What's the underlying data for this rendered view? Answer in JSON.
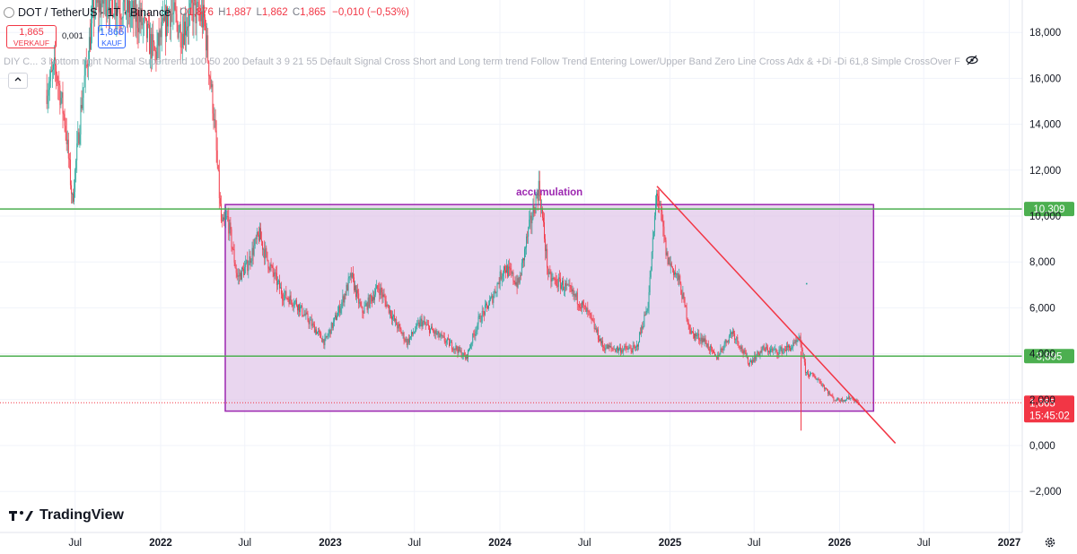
{
  "header": {
    "symbol": "DOT / TetherUS · 1T · Binance",
    "open_label": "O",
    "open": "1,876",
    "high_label": "H",
    "high": "1,887",
    "low_label": "L",
    "low": "1,862",
    "close_label": "C",
    "close": "1,865",
    "change": "−0,010 (−0,53%)"
  },
  "trade": {
    "sell_price": "1,865",
    "sell_label": "VERKAUF",
    "spread": "0,001",
    "buy_price": "1,866",
    "buy_label": "KAUF"
  },
  "indicators_text": "DIY C... 3 bottom right Normal Supertrend 100 50 200 Default 3 9 21 55 Default Signal Cross Short and Long term trend Follow Trend Entering Lower/Upper Band Zero Line Cross Adx & +Di -Di 61,8 Simple CrossOver F",
  "collapse_icon": "chevron-up-icon",
  "branding": "TradingView",
  "settings_icon": "gear-icon",
  "colors": {
    "up": "#26a69a",
    "down": "#f23645",
    "box_fill": "#e1c8e9",
    "box_stroke": "#9c27b0",
    "hline": "#4caf50",
    "trendline": "#f23645"
  },
  "chart_data": {
    "type": "candlestick",
    "y_ticks": [
      "18,000",
      "16,000",
      "14,000",
      "12,000",
      "10,000",
      "8,000",
      "6,000",
      "4,000",
      "2,000",
      "0,000",
      "−2,000"
    ],
    "y_tick_values": [
      18,
      16,
      14,
      12,
      10,
      8,
      6,
      4,
      2,
      0,
      -2
    ],
    "x_ticks": [
      "Jul",
      "2022",
      "Jul",
      "2023",
      "Jul",
      "2024",
      "Jul",
      "2025",
      "Jul",
      "2026",
      "Jul",
      "2027"
    ],
    "x_tick_dates": [
      "2021-07-01",
      "2022-01-01",
      "2022-07-01",
      "2023-01-01",
      "2023-07-01",
      "2024-01-01",
      "2024-07-01",
      "2025-01-01",
      "2025-07-01",
      "2026-01-01",
      "2026-07-01",
      "2027-01-01"
    ],
    "ylim": [
      -2.7,
      19.5
    ],
    "price_path": [
      [
        "2021-05-01",
        15.5
      ],
      [
        "2021-05-20",
        16.5
      ],
      [
        "2021-06-10",
        14.0
      ],
      [
        "2021-06-25",
        10.6
      ],
      [
        "2021-07-15",
        15.0
      ],
      [
        "2021-08-10",
        19.0
      ],
      [
        "2021-09-10",
        19.5
      ],
      [
        "2021-10-20",
        19.0
      ],
      [
        "2021-11-20",
        18.5
      ],
      [
        "2021-12-20",
        17.0
      ],
      [
        "2022-01-20",
        19.0
      ],
      [
        "2022-02-15",
        18.0
      ],
      [
        "2022-03-10",
        19.0
      ],
      [
        "2022-04-05",
        18.5
      ],
      [
        "2022-04-25",
        14.5
      ],
      [
        "2022-05-12",
        9.5
      ],
      [
        "2022-05-25",
        9.9
      ],
      [
        "2022-06-15",
        7.3
      ],
      [
        "2022-07-05",
        7.8
      ],
      [
        "2022-08-01",
        9.2
      ],
      [
        "2022-08-20",
        8.0
      ],
      [
        "2022-09-20",
        6.6
      ],
      [
        "2022-10-20",
        6.2
      ],
      [
        "2022-11-10",
        5.6
      ],
      [
        "2022-12-20",
        4.5
      ],
      [
        "2023-01-20",
        5.9
      ],
      [
        "2023-02-15",
        7.4
      ],
      [
        "2023-03-10",
        5.8
      ],
      [
        "2023-04-15",
        6.9
      ],
      [
        "2023-05-20",
        5.4
      ],
      [
        "2023-06-15",
        4.5
      ],
      [
        "2023-07-15",
        5.4
      ],
      [
        "2023-08-20",
        4.8
      ],
      [
        "2023-10-01",
        4.2
      ],
      [
        "2023-10-20",
        3.8
      ],
      [
        "2023-11-15",
        5.4
      ],
      [
        "2023-12-15",
        6.4
      ],
      [
        "2024-01-10",
        7.8
      ],
      [
        "2024-02-10",
        7.0
      ],
      [
        "2024-03-01",
        9.2
      ],
      [
        "2024-03-25",
        11.3
      ],
      [
        "2024-04-15",
        7.3
      ],
      [
        "2024-05-15",
        7.0
      ],
      [
        "2024-06-15",
        6.4
      ],
      [
        "2024-07-10",
        5.7
      ],
      [
        "2024-08-10",
        4.3
      ],
      [
        "2024-09-10",
        4.2
      ],
      [
        "2024-10-20",
        4.2
      ],
      [
        "2024-11-15",
        6.2
      ],
      [
        "2024-12-04",
        11.2
      ],
      [
        "2024-12-25",
        8.2
      ],
      [
        "2025-01-20",
        7.2
      ],
      [
        "2025-02-15",
        4.9
      ],
      [
        "2025-03-15",
        4.6
      ],
      [
        "2025-04-10",
        3.8
      ],
      [
        "2025-05-15",
        5.0
      ],
      [
        "2025-06-20",
        3.6
      ],
      [
        "2025-07-20",
        4.2
      ],
      [
        "2025-08-20",
        4.1
      ],
      [
        "2025-09-20",
        4.3
      ],
      [
        "2025-10-08",
        4.6
      ],
      [
        "2025-10-20",
        3.2
      ],
      [
        "2025-11-15",
        2.9
      ],
      [
        "2025-12-20",
        2.0
      ],
      [
        "2026-01-10",
        2.0
      ],
      [
        "2026-01-25",
        2.1
      ],
      [
        "2026-02-10",
        1.87
      ]
    ],
    "flash_crash": {
      "date": "2025-10-10",
      "low": 0.65
    },
    "box": {
      "label": "accumulation",
      "x_start": "2022-05-20",
      "x_end": "2026-03-15",
      "y_low": 1.5,
      "y_high": 10.5
    },
    "hlines": [
      {
        "value": 10.309,
        "label": "10,309"
      },
      {
        "value": 3.895,
        "label": "3,895"
      }
    ],
    "trendline": {
      "x1": "2024-12-04",
      "y1": 11.3,
      "x2": "2026-05-01",
      "y2": 0.1
    },
    "last_price": {
      "value": 1.865,
      "label": "1,865",
      "countdown": "15:45:02"
    },
    "stray_point": {
      "date": "2025-10-22",
      "value": 7.05
    }
  }
}
